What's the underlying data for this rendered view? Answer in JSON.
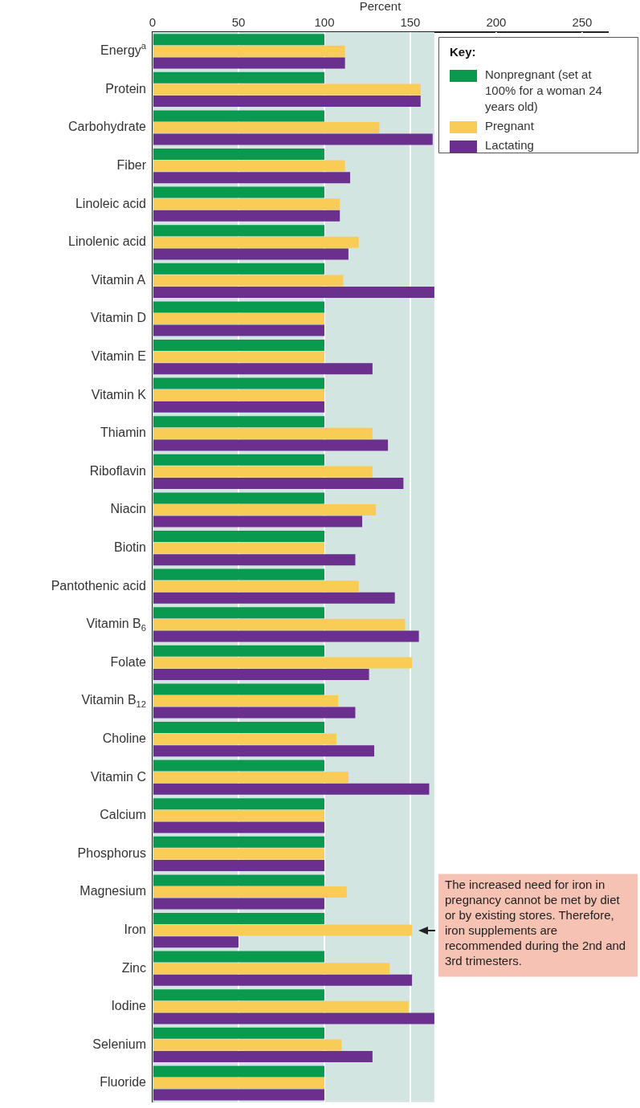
{
  "chart_data": {
    "type": "bar",
    "orientation": "horizontal",
    "xlabel": "Percent",
    "categories": [
      "Energy$^{a}$",
      "Protein",
      "Carbohydrate",
      "Fiber",
      "Linoleic acid",
      "Linolenic acid",
      "Vitamin A",
      "Vitamin D",
      "Vitamin E",
      "Vitamin K",
      "Thiamin",
      "Riboflavin",
      "Niacin",
      "Biotin",
      "Pantothenic acid",
      "Vitamin B$_{6}$",
      "Folate",
      "Vitamin B$_{12}$",
      "Choline",
      "Vitamin C",
      "Calcium",
      "Phosphorus",
      "Magnesium",
      "Iron",
      "Zinc",
      "Iodine",
      "Selenium",
      "Fluoride"
    ],
    "series": [
      {
        "name": "Nonpregnant (set at 100% for a woman 24 years old)",
        "color": "#0a9a4f",
        "values": [
          100,
          100,
          100,
          100,
          100,
          100,
          100,
          100,
          100,
          100,
          100,
          100,
          100,
          100,
          100,
          100,
          100,
          100,
          100,
          100,
          100,
          100,
          100,
          100,
          100,
          100,
          100,
          100
        ]
      },
      {
        "name": "Pregnant",
        "color": "#f9cd55",
        "values": [
          112,
          156,
          132,
          112,
          109,
          120,
          111,
          100,
          100,
          100,
          128,
          128,
          130,
          100,
          120,
          147,
          151,
          108,
          107,
          114,
          100,
          100,
          113,
          151,
          138,
          149,
          110,
          100
        ]
      },
      {
        "name": "Lactating",
        "color": "#6b2f8e",
        "values": [
          112,
          156,
          163,
          115,
          109,
          114,
          164,
          100,
          128,
          100,
          137,
          146,
          122,
          118,
          141,
          155,
          126,
          118,
          129,
          161,
          100,
          100,
          100,
          50,
          151,
          164,
          128,
          100
        ]
      }
    ],
    "xlim": [
      0,
      265
    ],
    "xticks": [
      0,
      50,
      100,
      150,
      200,
      250
    ],
    "grid": "x",
    "legend": "top right",
    "legend_title": "Key:",
    "bands": [
      {
        "axis": "x",
        "from": 0,
        "to": 164,
        "color": "#d3e5e0"
      }
    ],
    "annotations": [
      {
        "text": "The increased need for iron in pregnancy cannot be met by diet or by existing stores. Therefore, iron supplements are recommended during the 2nd and 3rd trimesters.",
        "x": 151,
        "y": "Iron"
      }
    ]
  }
}
